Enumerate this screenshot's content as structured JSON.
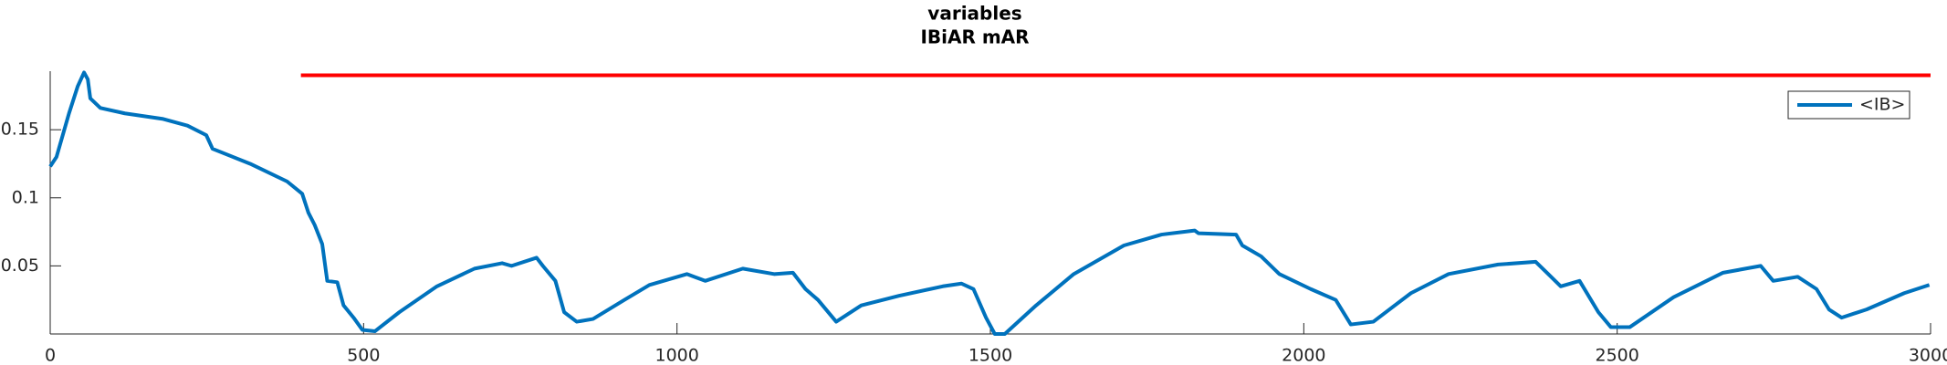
{
  "chart_data": {
    "type": "line",
    "title": "variables",
    "subtitle": "IBiAR mAR",
    "x": [
      0,
      10,
      30,
      44,
      54,
      60,
      64,
      80,
      119,
      179,
      219,
      249,
      259,
      319,
      378,
      402,
      412,
      422,
      434,
      442,
      458,
      468,
      484,
      498,
      518,
      557,
      617,
      677,
      721,
      736,
      776,
      786,
      806,
      820,
      840,
      866,
      916,
      956,
      1016,
      1045,
      1105,
      1155,
      1185,
      1205,
      1225,
      1254,
      1294,
      1354,
      1424,
      1454,
      1473,
      1493,
      1507,
      1523,
      1573,
      1633,
      1713,
      1773,
      1826,
      1832,
      1892,
      1902,
      1932,
      1961,
      2011,
      2051,
      2075,
      2111,
      2171,
      2231,
      2310,
      2370,
      2390,
      2410,
      2440,
      2470,
      2490,
      2520,
      2590,
      2669,
      2729,
      2749,
      2788,
      2818,
      2838,
      2858,
      2898,
      2958,
      2998
    ],
    "series": [
      {
        "name": "<IB>",
        "color": "#0072bd",
        "values": [
          0.123,
          0.13,
          0.162,
          0.182,
          0.192,
          0.187,
          0.173,
          0.166,
          0.162,
          0.158,
          0.153,
          0.146,
          0.136,
          0.125,
          0.112,
          0.103,
          0.089,
          0.08,
          0.066,
          0.039,
          0.038,
          0.021,
          0.012,
          0.003,
          0.002,
          0.016,
          0.035,
          0.048,
          0.052,
          0.05,
          0.056,
          0.05,
          0.039,
          0.016,
          0.009,
          0.011,
          0.025,
          0.036,
          0.044,
          0.039,
          0.048,
          0.044,
          0.045,
          0.033,
          0.025,
          0.009,
          0.021,
          0.028,
          0.035,
          0.037,
          0.033,
          0.012,
          0.0,
          0.0,
          0.021,
          0.044,
          0.065,
          0.073,
          0.076,
          0.074,
          0.073,
          0.065,
          0.057,
          0.044,
          0.033,
          0.025,
          0.007,
          0.009,
          0.03,
          0.044,
          0.051,
          0.053,
          0.044,
          0.035,
          0.039,
          0.016,
          0.005,
          0.005,
          0.027,
          0.045,
          0.05,
          0.039,
          0.042,
          0.033,
          0.018,
          0.012,
          0.018,
          0.03,
          0.036
        ]
      }
    ],
    "reference_line": {
      "x": [
        400,
        3000
      ],
      "y": [
        0.19,
        0.19
      ],
      "color": "#ff0000"
    },
    "xlim": [
      0,
      3000
    ],
    "ylim": [
      0,
      0.193
    ],
    "xticks": [
      0,
      500,
      1000,
      1500,
      2000,
      2500,
      3000
    ],
    "yticks": [
      0.05,
      0.1,
      0.15
    ],
    "legend": "top-right"
  }
}
